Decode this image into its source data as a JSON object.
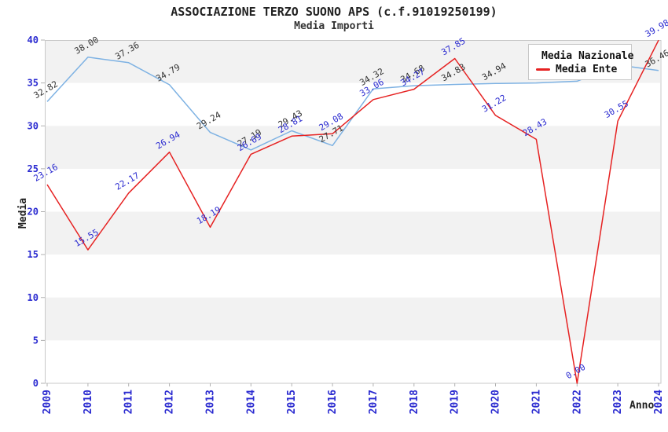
{
  "header": {
    "title": "ASSOCIAZIONE TERZO SUONO APS (c.f.91019250199)",
    "subtitle": "Media Importi"
  },
  "axes": {
    "y_label": "Media",
    "x_label": "Anno"
  },
  "legend": {
    "items": [
      {
        "label": "Media Nazionale",
        "color": "#7eb2e3"
      },
      {
        "label": "Media Ente",
        "color": "#e62222"
      }
    ]
  },
  "colors": {
    "band_gray": "#f2f2f2",
    "plot_border": "#c8c8c8",
    "tick_blue": "#2a2ad0",
    "label_dark": "#333333",
    "label_blue": "#2a2ad0"
  },
  "chart_data": {
    "type": "line",
    "title": "ASSOCIAZIONE TERZO SUONO APS (c.f.91019250199)",
    "subtitle": "Media Importi",
    "xlabel": "Anno",
    "ylabel": "Media",
    "ylim": [
      0,
      40
    ],
    "y_ticks": [
      0,
      5,
      10,
      15,
      20,
      25,
      30,
      35,
      40
    ],
    "grid": "alternating-horizontal-bands",
    "legend_position": "top-right-inside",
    "categories": [
      "2009",
      "2010",
      "2011",
      "2012",
      "2013",
      "2014",
      "2015",
      "2016",
      "2017",
      "2018",
      "2019",
      "2020",
      "2021",
      "2022",
      "2023",
      "2024"
    ],
    "series": [
      {
        "name": "Media Nazionale",
        "color": "#7eb2e3",
        "label_color": "#333333",
        "values": [
          32.82,
          38.0,
          37.36,
          34.79,
          29.24,
          27.19,
          29.43,
          27.71,
          34.32,
          34.68,
          34.83,
          34.94,
          35.0,
          35.2,
          37.1,
          36.46
        ],
        "labels": [
          "32.82",
          "38.00",
          "37.36",
          "34.79",
          "29.24",
          "27.19",
          "29.43",
          "27.71",
          "34.32",
          "34.68",
          "34.83",
          "34.94",
          null,
          null,
          null,
          "36.46"
        ],
        "note": "labels for 2021-2023 hidden behind legend in original"
      },
      {
        "name": "Media Ente",
        "color": "#e62222",
        "label_color": "#2a2ad0",
        "values": [
          23.16,
          15.55,
          22.17,
          26.94,
          18.19,
          26.69,
          28.81,
          29.08,
          33.06,
          34.27,
          37.85,
          31.22,
          28.43,
          0.0,
          30.55,
          39.98
        ],
        "labels": [
          "23.16",
          "15.55",
          "22.17",
          "26.94",
          "18.19",
          "26.69",
          "28.81",
          "29.08",
          "33.06",
          "34.27",
          "37.85",
          "31.22",
          "28.43",
          "0.00",
          "30.55",
          "39.98"
        ]
      }
    ]
  }
}
